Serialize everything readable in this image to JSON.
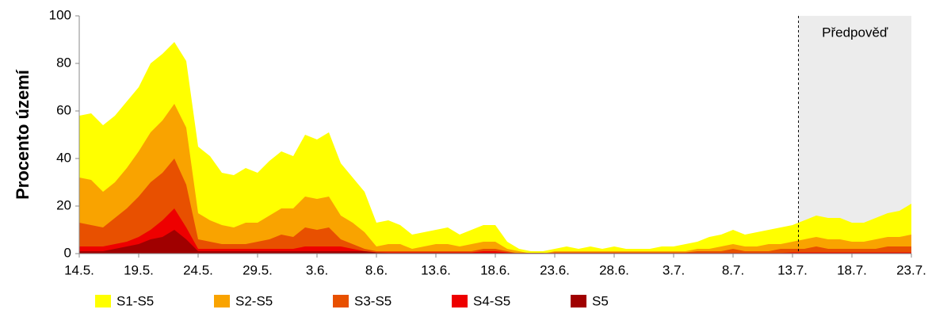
{
  "chart_data": {
    "type": "area",
    "y_label": "Procento území",
    "categories": [
      "14.5.",
      null,
      null,
      null,
      null,
      "19.5.",
      null,
      null,
      null,
      null,
      "24.5.",
      null,
      null,
      null,
      null,
      "29.5.",
      null,
      null,
      null,
      null,
      "3.6.",
      null,
      null,
      null,
      null,
      "8.6.",
      null,
      null,
      null,
      null,
      "13.6.",
      null,
      null,
      null,
      null,
      "18.6.",
      null,
      null,
      null,
      null,
      "23.6.",
      null,
      null,
      null,
      null,
      "28.6.",
      null,
      null,
      null,
      null,
      "3.7.",
      null,
      null,
      null,
      null,
      "8.7.",
      null,
      null,
      null,
      null,
      "13.7.",
      null,
      null,
      null,
      null,
      "18.7.",
      null,
      null,
      null,
      null,
      "23.7."
    ],
    "series": [
      {
        "name": "S1-S5",
        "color": "#ffff00",
        "values": [
          58,
          59,
          54,
          58,
          64,
          70,
          80,
          84,
          89,
          81,
          45,
          41,
          34,
          33,
          36,
          34,
          39,
          43,
          41,
          50,
          48,
          51,
          38,
          32,
          26,
          13,
          14,
          12,
          8,
          9,
          10,
          11,
          8,
          10,
          12,
          12,
          5,
          2,
          1,
          1,
          2,
          3,
          2,
          3,
          2,
          3,
          2,
          2,
          2,
          3,
          3,
          4,
          5,
          7,
          8,
          10,
          8,
          9,
          10,
          11,
          12,
          14,
          16,
          15,
          15,
          13,
          13,
          15,
          17,
          18,
          21
        ]
      },
      {
        "name": "S2-S5",
        "color": "#f9a300",
        "values": [
          32,
          31,
          26,
          30,
          36,
          43,
          51,
          56,
          63,
          53,
          17,
          14,
          12,
          11,
          13,
          13,
          16,
          19,
          19,
          24,
          23,
          24,
          16,
          13,
          9,
          3,
          4,
          4,
          2,
          3,
          4,
          4,
          3,
          4,
          5,
          5,
          2,
          1,
          0,
          0,
          1,
          1,
          1,
          1,
          1,
          1,
          1,
          1,
          1,
          1,
          1,
          1,
          2,
          2,
          3,
          4,
          3,
          3,
          4,
          4,
          5,
          6,
          7,
          6,
          6,
          5,
          5,
          6,
          7,
          7,
          8
        ]
      },
      {
        "name": "S3-S5",
        "color": "#e85000",
        "values": [
          13,
          12,
          11,
          15,
          19,
          24,
          30,
          34,
          40,
          29,
          6,
          5,
          4,
          4,
          4,
          5,
          6,
          8,
          7,
          11,
          10,
          11,
          6,
          4,
          2,
          1,
          1,
          1,
          1,
          1,
          1,
          1,
          1,
          1,
          2,
          2,
          1,
          0,
          0,
          0,
          0.5,
          0.5,
          0.5,
          0.5,
          0.5,
          0.5,
          0.5,
          0.5,
          0.5,
          0.5,
          0.5,
          0.5,
          1,
          1,
          1,
          2,
          1,
          1,
          1,
          2,
          2,
          2,
          3,
          2,
          2,
          2,
          2,
          2,
          3,
          3,
          3
        ]
      },
      {
        "name": "S4-S5",
        "color": "#ee0000",
        "values": [
          3,
          3,
          3,
          4,
          5,
          7,
          10,
          14,
          19,
          11,
          2,
          2,
          2,
          2,
          2,
          2,
          2,
          2,
          2,
          3,
          3,
          3,
          3,
          2,
          1,
          0.5,
          0.5,
          0.5,
          0.5,
          0.5,
          0.5,
          0.5,
          0.5,
          0.5,
          1,
          1,
          0.5,
          0,
          0,
          0,
          0.3,
          0.3,
          0.3,
          0.3,
          0.3,
          0.3,
          0.3,
          0.3,
          0.3,
          0.3,
          0.3,
          0.3,
          0.3,
          0.3,
          0.3,
          0.3,
          0.3,
          0.3,
          0.3,
          0.3,
          0.5,
          0.5,
          0.5,
          0.5,
          0.5,
          0.5,
          0.5,
          0.5,
          0.5,
          0.5,
          0.5
        ]
      },
      {
        "name": "S5",
        "color": "#a00000",
        "values": [
          1,
          1,
          1,
          2,
          3,
          4,
          6,
          7,
          10,
          6,
          1,
          1,
          1,
          1,
          1,
          1,
          1,
          1,
          1,
          1,
          1,
          1,
          1,
          1,
          1,
          0.5,
          0.3,
          0.3,
          0.3,
          0.3,
          0.3,
          0.3,
          0.3,
          0.3,
          0.3,
          0.3,
          0.3,
          0.3,
          0.3,
          0.3,
          0.2,
          0.2,
          0.2,
          0.2,
          0.2,
          0.2,
          0.2,
          0.2,
          0.2,
          0.2,
          0.2,
          0.2,
          0.2,
          0.2,
          0.2,
          0.2,
          0.2,
          0.2,
          0.2,
          0.2,
          0.2,
          0.2,
          0.2,
          0.2,
          0.2,
          0.2,
          0.2,
          0.2,
          0.2,
          0.2,
          0.2
        ]
      }
    ],
    "ylim": [
      0,
      100
    ],
    "yticks": [
      0,
      20,
      40,
      60,
      80,
      100
    ],
    "forecast": {
      "label": "Předpověď",
      "start": 60.5
    }
  }
}
